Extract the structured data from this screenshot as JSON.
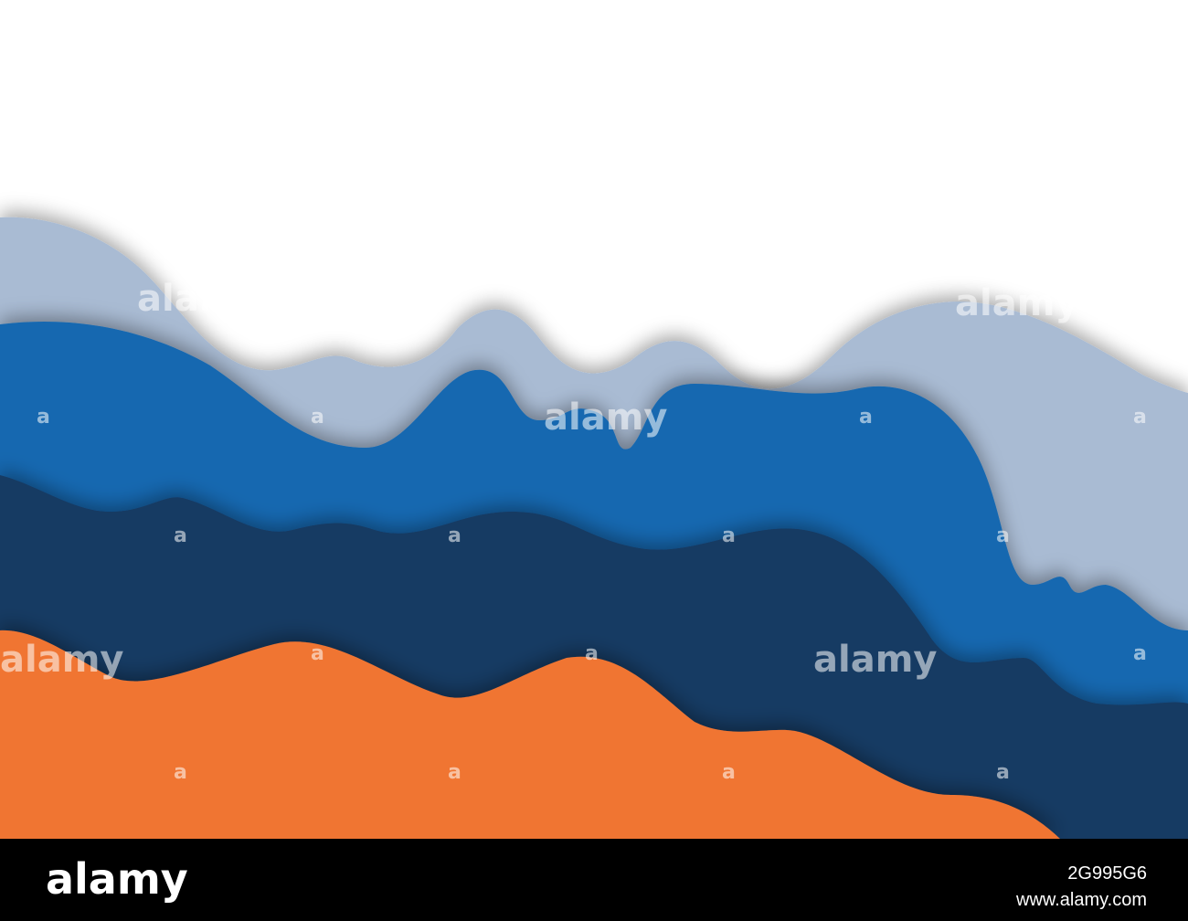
{
  "watermark": {
    "brand": "alamy",
    "mark": "a"
  },
  "footer": {
    "brand": "alamy",
    "image_id": "2G995G6",
    "url": "www.alamy.com"
  }
}
